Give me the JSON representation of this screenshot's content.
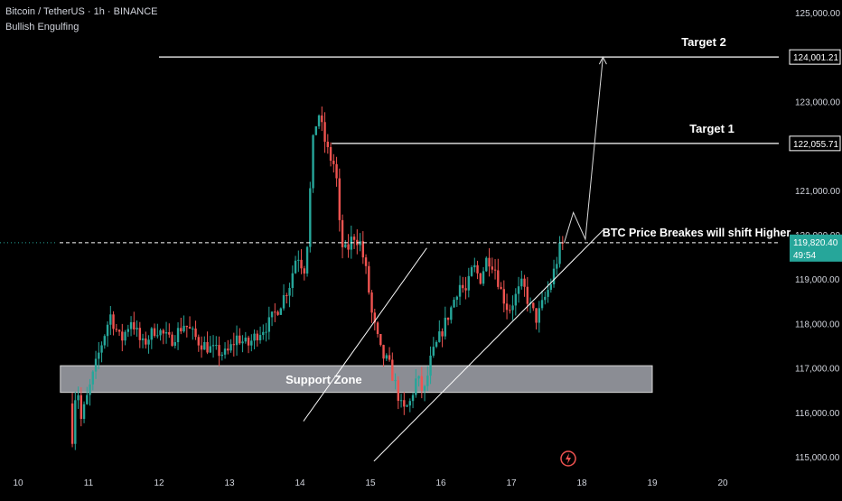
{
  "header": {
    "title": "Bitcoin / TetherUS · 1h · BINANCE",
    "indicator": "Bullish Engulfing"
  },
  "colors": {
    "background": "#000000",
    "up": "#26a69a",
    "down": "#ef5350",
    "annotation": "#ffffff",
    "zone": "#b2b5be",
    "price_tag": "#26a69a",
    "axis_text": "#d1d4dc"
  },
  "chart_data": {
    "type": "candlestick",
    "title": "",
    "xlabel": "",
    "ylabel": "",
    "x_tick_labels": [
      "10",
      "11",
      "12",
      "13",
      "14",
      "15",
      "16",
      "17",
      "18",
      "19",
      "20"
    ],
    "y_tick_labels": [
      "115,000.00",
      "116,000.00",
      "117,000.00",
      "118,000.00",
      "119,000.00",
      "120,000.00",
      "121,000.00",
      "122,000.00",
      "123,000.00",
      "124,000.00",
      "125,000.00"
    ],
    "xlim": [
      10,
      20.2
    ],
    "ylim": [
      114700,
      125100
    ],
    "current_price": 119820.4,
    "current_price_label": "119,820.40",
    "countdown_label": "49:54",
    "price_path": [
      [
        10.77,
        116200
      ],
      [
        10.82,
        115300
      ],
      [
        10.87,
        116900
      ],
      [
        10.93,
        115800
      ],
      [
        11.05,
        116500
      ],
      [
        11.2,
        117400
      ],
      [
        11.35,
        118200
      ],
      [
        11.5,
        117600
      ],
      [
        11.65,
        118100
      ],
      [
        11.8,
        117500
      ],
      [
        12.0,
        117900
      ],
      [
        12.2,
        117600
      ],
      [
        12.4,
        118000
      ],
      [
        12.6,
        117600
      ],
      [
        12.8,
        117400
      ],
      [
        13.0,
        117300
      ],
      [
        13.15,
        117700
      ],
      [
        13.3,
        117500
      ],
      [
        13.45,
        117800
      ],
      [
        13.6,
        118000
      ],
      [
        13.75,
        118400
      ],
      [
        13.9,
        118900
      ],
      [
        14.0,
        119600
      ],
      [
        14.1,
        119200
      ],
      [
        14.15,
        119900
      ],
      [
        14.22,
        122000
      ],
      [
        14.3,
        122800
      ],
      [
        14.38,
        122200
      ],
      [
        14.45,
        121800
      ],
      [
        14.55,
        121500
      ],
      [
        14.62,
        119800
      ],
      [
        14.7,
        119600
      ],
      [
        14.8,
        120000
      ],
      [
        14.9,
        119800
      ],
      [
        15.0,
        119000
      ],
      [
        15.05,
        118300
      ],
      [
        15.12,
        117800
      ],
      [
        15.2,
        117300
      ],
      [
        15.3,
        117100
      ],
      [
        15.4,
        116600
      ],
      [
        15.5,
        116000
      ],
      [
        15.6,
        116200
      ],
      [
        15.7,
        116800
      ],
      [
        15.8,
        116400
      ],
      [
        15.9,
        117200
      ],
      [
        16.0,
        117600
      ],
      [
        16.1,
        118000
      ],
      [
        16.2,
        118400
      ],
      [
        16.3,
        118900
      ],
      [
        16.4,
        118700
      ],
      [
        16.5,
        119300
      ],
      [
        16.6,
        119000
      ],
      [
        16.7,
        119500
      ],
      [
        16.8,
        119300
      ],
      [
        16.9,
        118700
      ],
      [
        17.0,
        118300
      ],
      [
        17.1,
        118600
      ],
      [
        17.2,
        118900
      ],
      [
        17.3,
        118400
      ],
      [
        17.4,
        118100
      ],
      [
        17.5,
        118500
      ],
      [
        17.6,
        118900
      ],
      [
        17.7,
        119500
      ],
      [
        17.75,
        119820
      ]
    ],
    "annotations": [
      {
        "id": "target-2",
        "text": "Target 2",
        "price": 124001.21,
        "label": "124,001.21",
        "x_start": 12.0
      },
      {
        "id": "target-1",
        "text": "Target 1",
        "price": 122055.71,
        "label": "122,055.71",
        "x_start": 14.45
      },
      {
        "id": "breakout",
        "text": "BTC Price Breakes will shift Higher"
      }
    ],
    "support_zone": {
      "text": "Support Zone",
      "low": 116450,
      "high": 117050,
      "x_start": 10.6,
      "x_end": 19.0
    },
    "channel": {
      "upper": [
        [
          14.05,
          115800
        ],
        [
          15.8,
          119700
        ]
      ],
      "lower": [
        [
          15.05,
          114900
        ],
        [
          18.3,
          120100
        ]
      ]
    },
    "projection": [
      [
        17.75,
        119820
      ],
      [
        17.88,
        120500
      ],
      [
        18.05,
        119900
      ],
      [
        18.3,
        124001.21
      ]
    ]
  }
}
